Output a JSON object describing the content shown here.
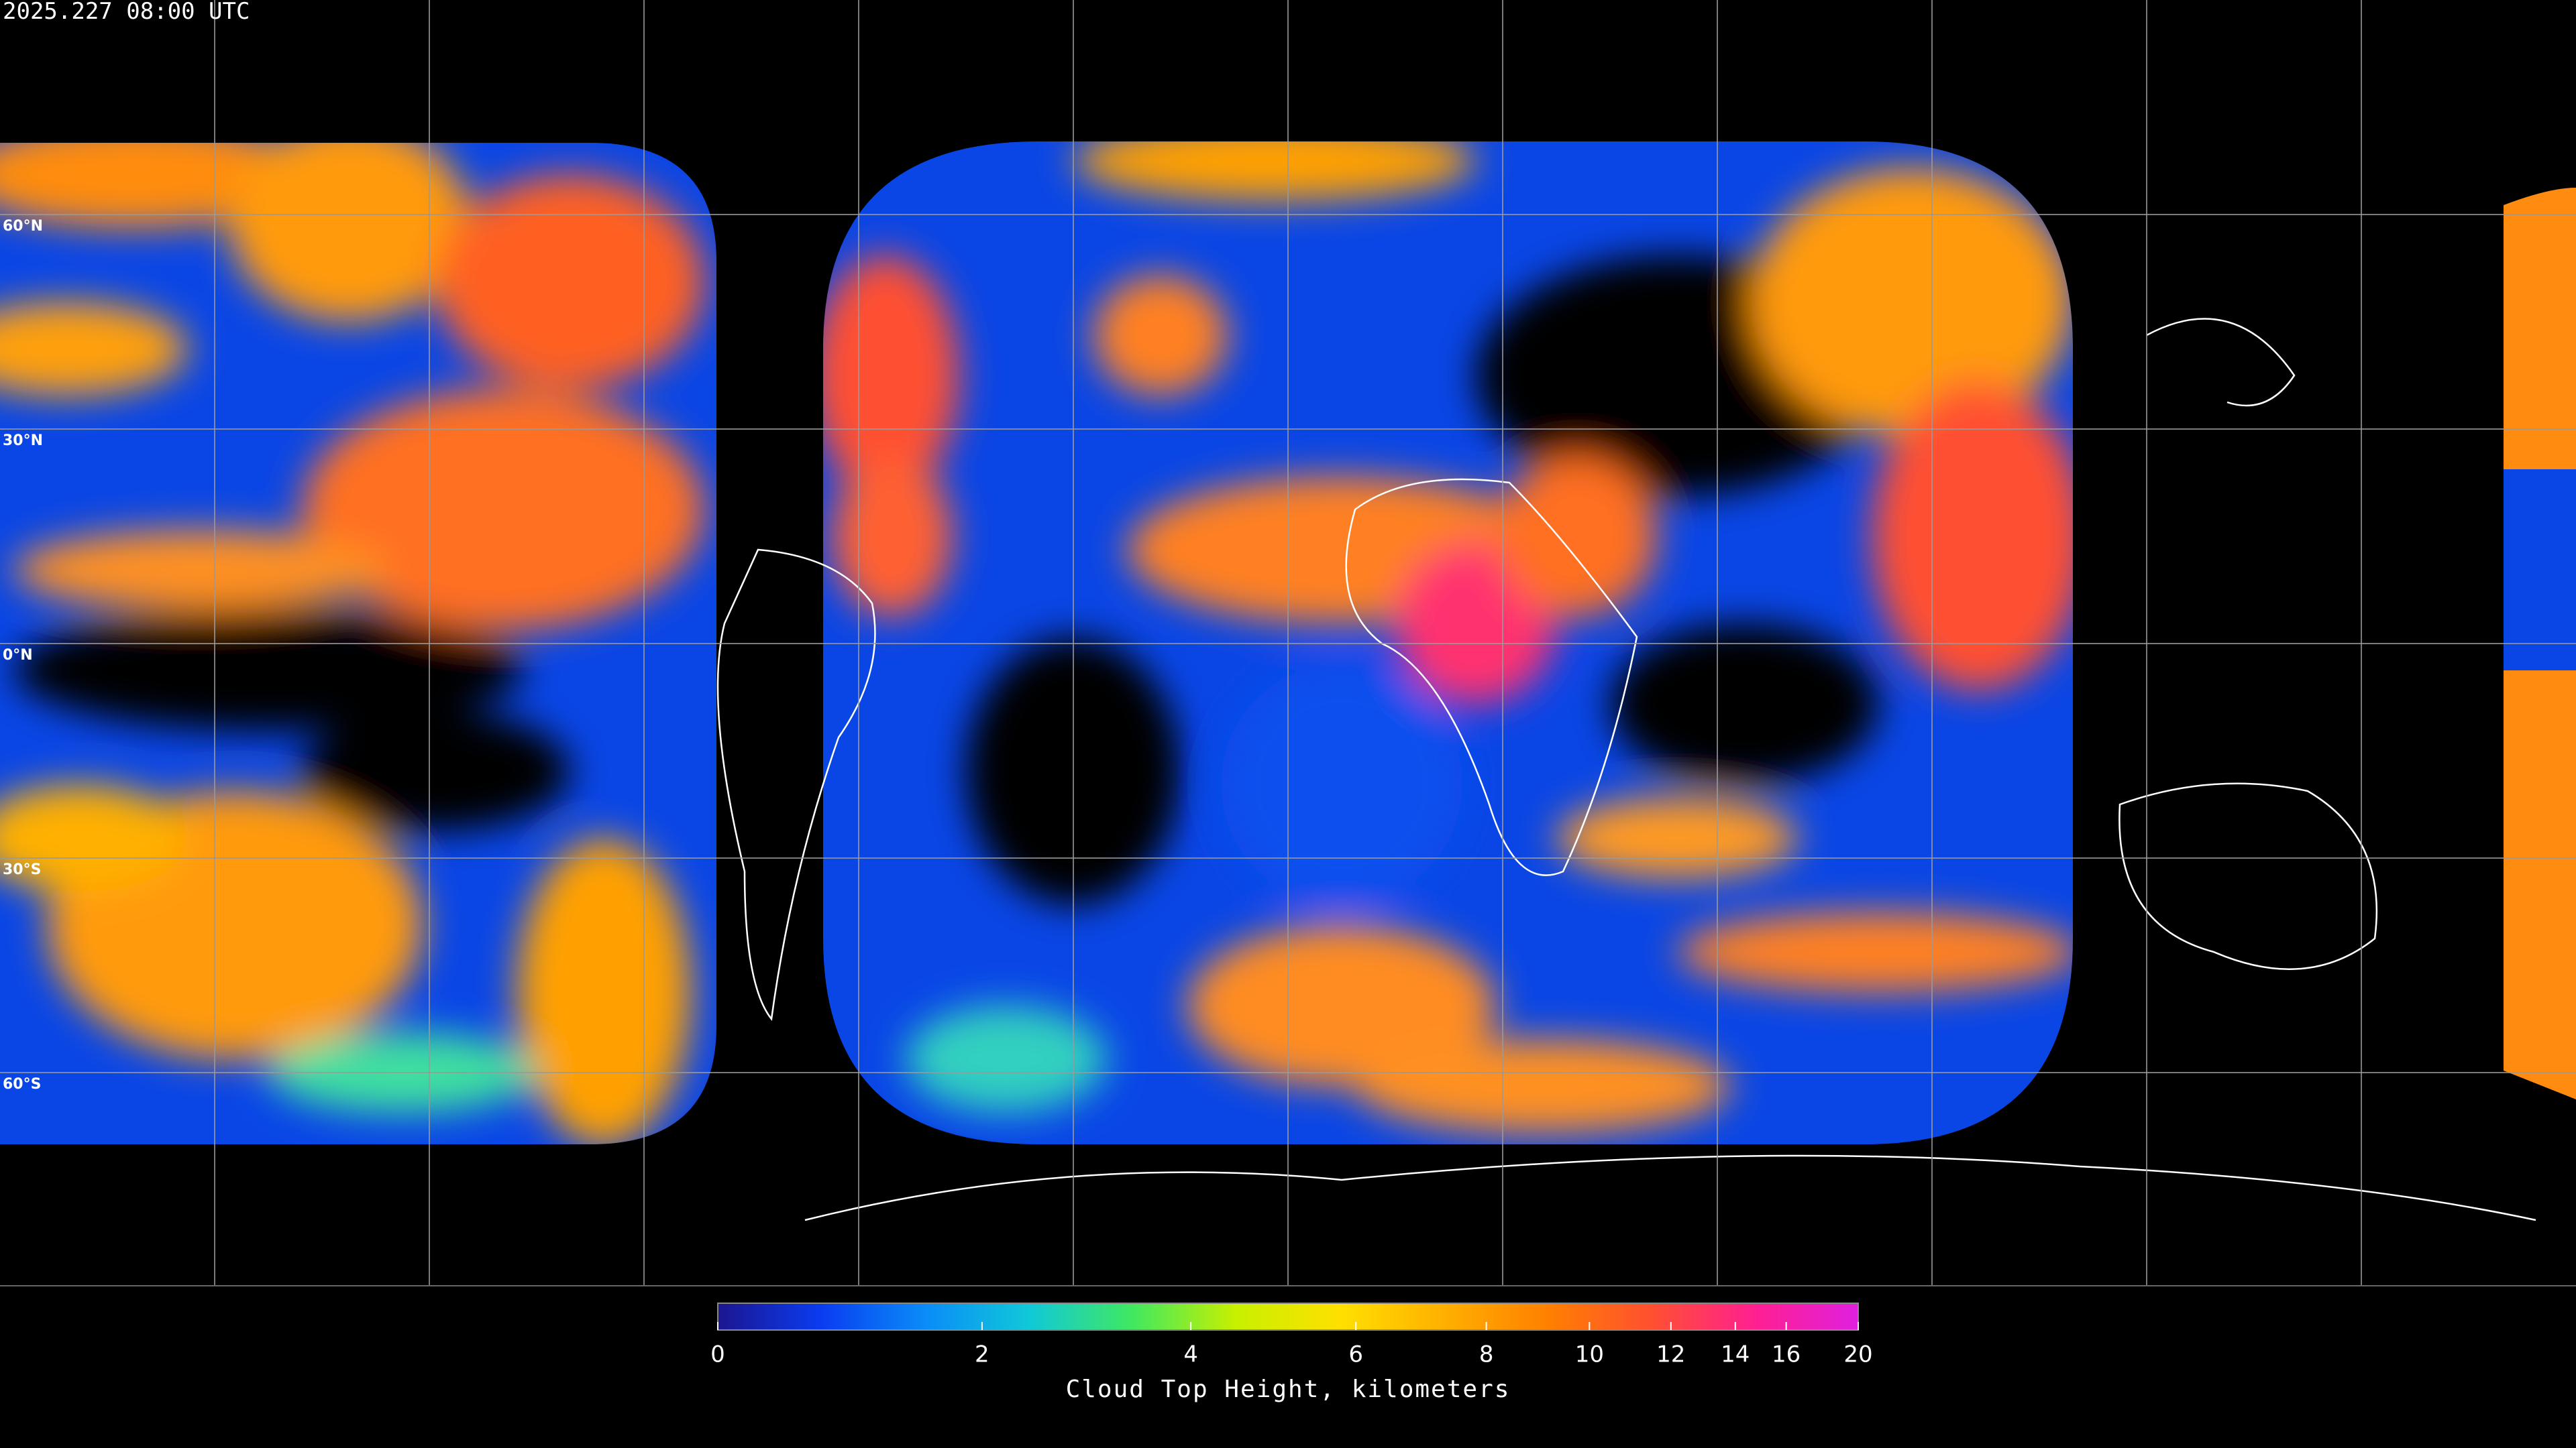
{
  "title": "2025.227 08:00 UTC",
  "lat_labels": [
    "60°N",
    "30°N",
    "0°N",
    "30°S",
    "60°S"
  ],
  "colorbar": {
    "label": "Cloud Top Height, kilometers",
    "lim": [
      0,
      20
    ],
    "ticks": [
      0,
      2,
      4,
      6,
      8,
      10,
      12,
      14,
      16,
      20
    ],
    "colormap": [
      "#1c1690",
      "#0a3cf0",
      "#0a8cf8",
      "#10c8d8",
      "#40e860",
      "#c8f000",
      "#ffe000",
      "#ffb000",
      "#ff8000",
      "#ff5030",
      "#ff2090",
      "#e020e0"
    ]
  }
}
